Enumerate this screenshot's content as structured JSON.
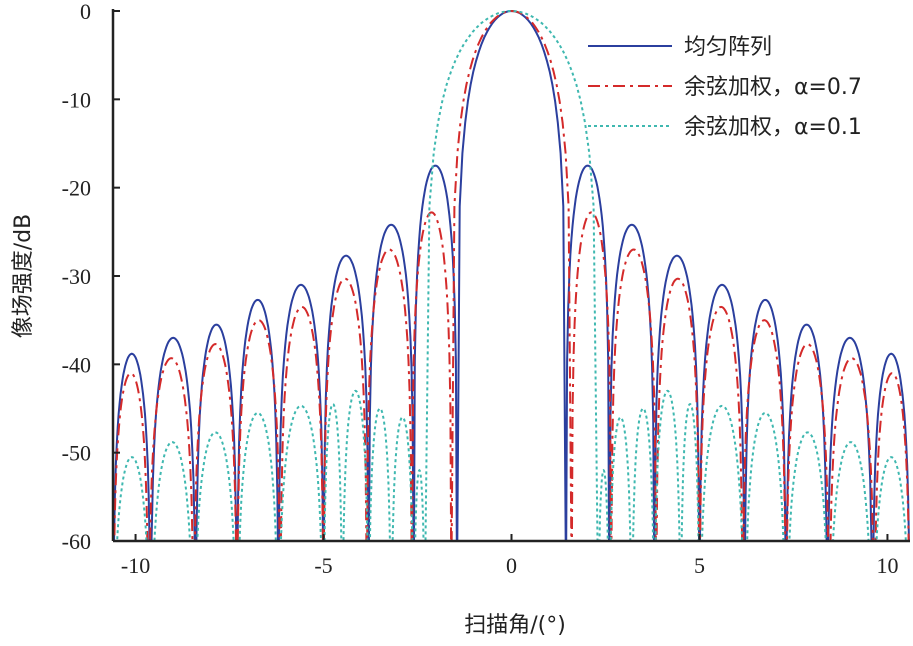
{
  "chart_data": {
    "type": "line",
    "xlabel": "扫描角/(°)",
    "ylabel": "像场强度/dB",
    "xlim": [
      -10.6,
      10.6
    ],
    "ylim": [
      -60,
      0
    ],
    "xticks": [
      -10,
      -5,
      0,
      5,
      10
    ],
    "xtick_labels": [
      "-10",
      "-5",
      "0",
      "5",
      "10"
    ],
    "yticks": [
      0,
      -10,
      -20,
      -30,
      -40,
      -50,
      -60
    ],
    "ytick_labels": [
      "0",
      "-10",
      "-20",
      "-30",
      "-40",
      "-50",
      "-60"
    ],
    "grid": false,
    "legend_position": "top-right",
    "series": [
      {
        "name": "均匀阵列",
        "color": "#2b3f9e",
        "dash": "solid",
        "lobes": [
          {
            "null_left": -1.45,
            "null_right": 1.45,
            "peak": 0
          },
          {
            "null_left": 1.45,
            "null_right": 2.6,
            "peak": -17.5
          },
          {
            "null_left": 2.6,
            "null_right": 3.8,
            "peak": -24.2
          },
          {
            "null_left": 3.8,
            "null_right": 5.0,
            "peak": -27.7
          },
          {
            "null_left": 5.0,
            "null_right": 6.2,
            "peak": -31.0
          },
          {
            "null_left": 6.2,
            "null_right": 7.3,
            "peak": -32.7
          },
          {
            "null_left": 7.3,
            "null_right": 8.4,
            "peak": -35.5
          },
          {
            "null_left": 8.4,
            "null_right": 9.6,
            "peak": -37.0
          },
          {
            "null_left": 9.6,
            "null_right": 10.6,
            "peak": -38.8
          }
        ]
      },
      {
        "name": "余弦加权，α=0.7",
        "color": "#d42a2a",
        "dash": "12,5,3,5",
        "lobes": [
          {
            "null_left": -1.6,
            "null_right": 1.6,
            "peak": 0
          },
          {
            "null_left": 1.6,
            "null_right": 2.65,
            "peak": -22.8
          },
          {
            "null_left": 2.65,
            "null_right": 3.85,
            "peak": -27.0
          },
          {
            "null_left": 3.85,
            "null_right": 5.0,
            "peak": -30.3
          },
          {
            "null_left": 5.0,
            "null_right": 6.15,
            "peak": -33.5
          },
          {
            "null_left": 6.15,
            "null_right": 7.3,
            "peak": -35.0
          },
          {
            "null_left": 7.3,
            "null_right": 8.45,
            "peak": -37.7
          },
          {
            "null_left": 8.45,
            "null_right": 9.65,
            "peak": -39.3
          },
          {
            "null_left": 9.65,
            "null_right": 10.6,
            "peak": -41.0
          }
        ]
      },
      {
        "name": "余弦加权，α=0.1",
        "color": "#3fb8b0",
        "dash": "3,3",
        "lobes": [
          {
            "null_left": -2.3,
            "null_right": 2.3,
            "peak": 0
          },
          {
            "null_left": 2.3,
            "null_right": 2.6,
            "peak": -52.0
          },
          {
            "null_left": 2.6,
            "null_right": 3.2,
            "peak": -46.0
          },
          {
            "null_left": 3.2,
            "null_right": 3.8,
            "peak": -45.0
          },
          {
            "null_left": 3.8,
            "null_right": 4.5,
            "peak": -43.0
          },
          {
            "null_left": 4.5,
            "null_right": 5.0,
            "peak": -44.5
          },
          {
            "null_left": 5.0,
            "null_right": 6.2,
            "peak": -44.7
          },
          {
            "null_left": 6.2,
            "null_right": 7.3,
            "peak": -45.5
          },
          {
            "null_left": 7.3,
            "null_right": 8.45,
            "peak": -47.7
          },
          {
            "null_left": 8.45,
            "null_right": 9.6,
            "peak": -48.8
          },
          {
            "null_left": 9.6,
            "null_right": 10.6,
            "peak": -50.5
          }
        ]
      }
    ]
  }
}
